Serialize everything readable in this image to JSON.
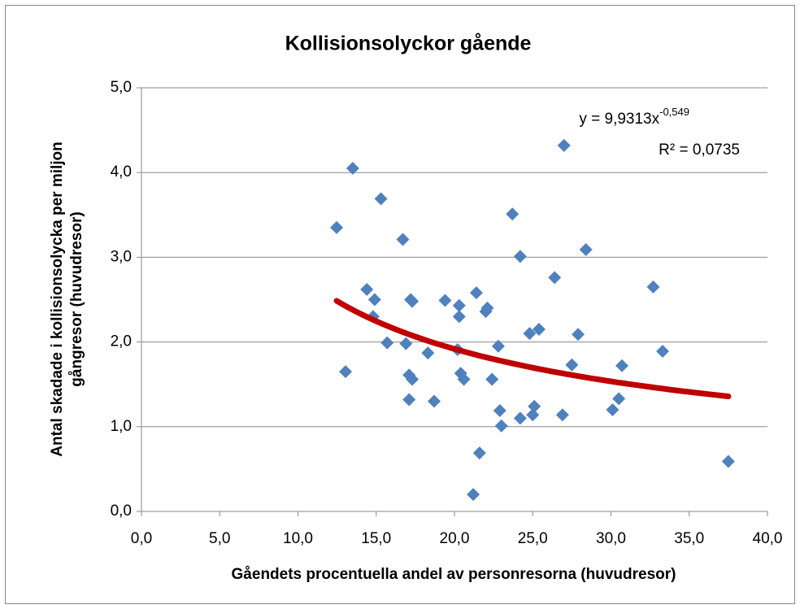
{
  "chart_data": {
    "type": "scatter",
    "title": "Kollisionsolyckor gående",
    "xlabel": "Gåendets procentuella andel av personresorna (huvudresor)",
    "ylabel": [
      "Antal skadade i kollisionsolycka per miljon",
      "gångresor (huvudresor)"
    ],
    "series": [
      {
        "name": "Kollisionsolyckor",
        "color": "#4f81bd",
        "x": [
          12.47,
          13.04,
          13.5,
          14.4,
          14.9,
          14.8,
          15.3,
          15.7,
          16.7,
          16.9,
          17.1,
          17.1,
          17.3,
          17.2,
          17.3,
          18.3,
          18.7,
          19.4,
          20.3,
          20.3,
          20.2,
          20.4,
          20.6,
          21.2,
          21.4,
          21.6,
          22.0,
          22.1,
          22.4,
          22.8,
          22.9,
          23.0,
          23.7,
          24.2,
          24.2,
          24.8,
          25.0,
          25.1,
          25.4,
          26.4,
          26.9,
          27.0,
          27.5,
          27.9,
          28.4,
          30.1,
          30.5,
          30.7,
          32.7,
          33.3,
          37.5
        ],
        "values": [
          3.35,
          1.65,
          4.05,
          2.62,
          2.5,
          2.3,
          3.69,
          1.99,
          3.21,
          1.98,
          1.32,
          1.61,
          1.56,
          2.5,
          2.48,
          1.87,
          1.3,
          2.49,
          2.43,
          2.3,
          1.91,
          1.63,
          1.56,
          0.2,
          2.58,
          0.69,
          2.36,
          2.4,
          1.56,
          1.95,
          1.19,
          1.01,
          3.51,
          3.01,
          1.1,
          2.1,
          1.14,
          1.24,
          2.15,
          2.76,
          1.14,
          4.32,
          1.73,
          2.09,
          3.09,
          1.2,
          1.33,
          1.72,
          2.65,
          1.89,
          0.59
        ]
      }
    ],
    "trendline": {
      "type": "power",
      "a": 9.9313,
      "b": -0.549,
      "color": "#c00000",
      "equation": "y = 9,9313x",
      "exponent_label": "-0,549",
      "r_squared": "R² = 0,0735"
    },
    "xlim": [
      0,
      40
    ],
    "ylim": [
      0,
      5
    ],
    "xticks": [
      {
        "value": 0,
        "label": "0,0"
      },
      {
        "value": 5,
        "label": "5,0"
      },
      {
        "value": 10,
        "label": "10,0"
      },
      {
        "value": 15,
        "label": "15,0"
      },
      {
        "value": 20,
        "label": "20,0"
      },
      {
        "value": 25,
        "label": "25,0"
      },
      {
        "value": 30,
        "label": "30,0"
      },
      {
        "value": 35,
        "label": "35,0"
      },
      {
        "value": 40,
        "label": "40,0"
      }
    ],
    "yticks": [
      {
        "value": 0,
        "label": "0,0"
      },
      {
        "value": 1,
        "label": "1,0"
      },
      {
        "value": 2,
        "label": "2,0"
      },
      {
        "value": 3,
        "label": "3,0"
      },
      {
        "value": 4,
        "label": "4,0"
      },
      {
        "value": 5,
        "label": "5,0"
      }
    ],
    "grid": true
  }
}
